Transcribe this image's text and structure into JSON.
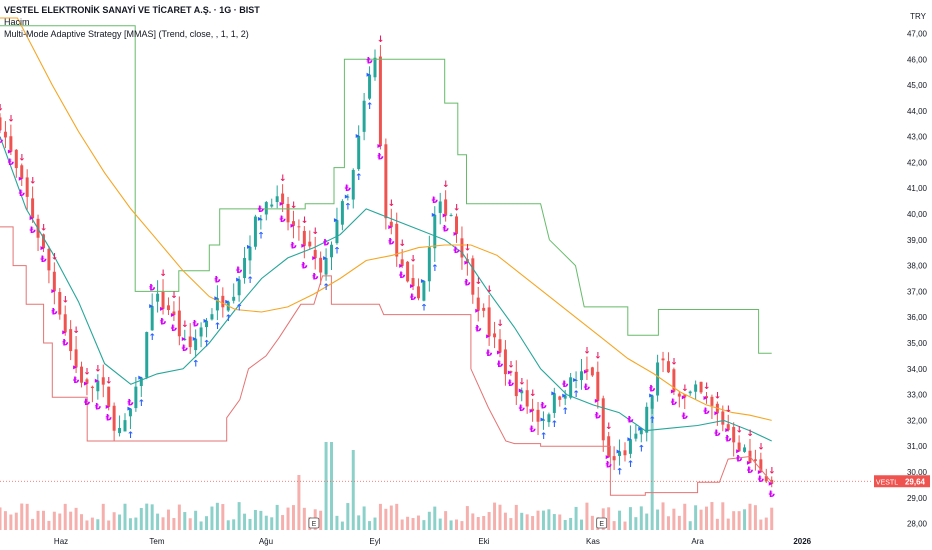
{
  "legend": {
    "title": "VESTEL ELEKTRONİK SANAYİ VE TİCARET A.Ş. · 1G · BIST",
    "volume": "Hacim",
    "indicator": "Multi-Mode Adaptive Strategy [MMAS] (Trend, close, , 1, 1, 2)"
  },
  "currency": "TRY",
  "price_tag": {
    "symbol": "VESTL",
    "value": "29,64"
  },
  "colors": {
    "bull": "#26a69a",
    "bear": "#ef5350",
    "upper_band": "#66bb6a",
    "lower_band": "#e57373",
    "fast_ma": "#26a69a",
    "slow_ma": "#f5a623",
    "sell_arrow": "#e91e63",
    "buy_arrow": "#2962ff",
    "lira_mark": "#d500f9",
    "tag_bg": "#ef5350"
  },
  "chart_data": {
    "type": "candlestick",
    "symbol": "VESTL",
    "timeframe": "1G",
    "y_ticks": [
      "47,00",
      "46,00",
      "45,00",
      "44,00",
      "43,00",
      "42,00",
      "41,00",
      "40,00",
      "39,00",
      "38,00",
      "37,00",
      "36,00",
      "35,00",
      "34,00",
      "33,00",
      "32,00",
      "31,00",
      "30,00",
      "29,00",
      "28,00"
    ],
    "ylim": [
      27.75,
      47.6
    ],
    "x_ticks": [
      {
        "label": "Haz",
        "t": 0.07
      },
      {
        "label": "Tem",
        "t": 0.18
      },
      {
        "label": "Ağu",
        "t": 0.305
      },
      {
        "label": "Eyl",
        "t": 0.43
      },
      {
        "label": "Eki",
        "t": 0.555
      },
      {
        "label": "Kas",
        "t": 0.68
      },
      {
        "label": "Ara",
        "t": 0.8
      },
      {
        "label": "2026",
        "t": 0.92
      }
    ],
    "price_anchors": [
      [
        0,
        43.6
      ],
      [
        0.02,
        41.5
      ],
      [
        0.035,
        40.2
      ],
      [
        0.05,
        38.5
      ],
      [
        0.065,
        36.8
      ],
      [
        0.085,
        34.2
      ],
      [
        0.1,
        33.2
      ],
      [
        0.115,
        33.5
      ],
      [
        0.125,
        32.3
      ],
      [
        0.14,
        31.4
      ],
      [
        0.16,
        33.4
      ],
      [
        0.175,
        36.8
      ],
      [
        0.195,
        36.3
      ],
      [
        0.215,
        34.6
      ],
      [
        0.24,
        36.2
      ],
      [
        0.27,
        37.2
      ],
      [
        0.29,
        39.4
      ],
      [
        0.31,
        40.8
      ],
      [
        0.335,
        39.5
      ],
      [
        0.355,
        38.6
      ],
      [
        0.37,
        37.4
      ],
      [
        0.385,
        39.8
      ],
      [
        0.4,
        40.6
      ],
      [
        0.41,
        42.5
      ],
      [
        0.42,
        44.8
      ],
      [
        0.43,
        46.0
      ],
      [
        0.44,
        40.5
      ],
      [
        0.455,
        38.4
      ],
      [
        0.47,
        36.8
      ],
      [
        0.485,
        37.2
      ],
      [
        0.5,
        40.1
      ],
      [
        0.515,
        40.3
      ],
      [
        0.53,
        38.6
      ],
      [
        0.545,
        36.9
      ],
      [
        0.56,
        35.5
      ],
      [
        0.58,
        34.0
      ],
      [
        0.6,
        32.8
      ],
      [
        0.62,
        32.0
      ],
      [
        0.64,
        33.0
      ],
      [
        0.66,
        33.6
      ],
      [
        0.68,
        33.9
      ],
      [
        0.69,
        31.4
      ],
      [
        0.7,
        30.3
      ],
      [
        0.715,
        30.8
      ],
      [
        0.73,
        31.2
      ],
      [
        0.745,
        32.6
      ],
      [
        0.755,
        34.3
      ],
      [
        0.77,
        33.6
      ],
      [
        0.785,
        32.8
      ],
      [
        0.8,
        33.1
      ],
      [
        0.815,
        32.5
      ],
      [
        0.83,
        31.9
      ],
      [
        0.845,
        31.2
      ],
      [
        0.86,
        30.4
      ],
      [
        0.875,
        30.1
      ],
      [
        0.885,
        29.64
      ]
    ],
    "upper_band": [
      [
        0,
        47.3
      ],
      [
        0.155,
        47.3
      ],
      [
        0.155,
        37.0
      ],
      [
        0.205,
        37.0
      ],
      [
        0.205,
        37.8
      ],
      [
        0.24,
        37.8
      ],
      [
        0.24,
        38.8
      ],
      [
        0.252,
        38.8
      ],
      [
        0.252,
        40.2
      ],
      [
        0.35,
        40.2
      ],
      [
        0.35,
        40.4
      ],
      [
        0.383,
        40.4
      ],
      [
        0.383,
        41.8
      ],
      [
        0.395,
        41.8
      ],
      [
        0.395,
        46.0
      ],
      [
        0.51,
        46.0
      ],
      [
        0.51,
        44.3
      ],
      [
        0.525,
        44.3
      ],
      [
        0.525,
        42.3
      ],
      [
        0.535,
        42.3
      ],
      [
        0.535,
        40.4
      ],
      [
        0.62,
        40.4
      ],
      [
        0.63,
        39.0
      ],
      [
        0.66,
        38.0
      ],
      [
        0.67,
        36.4
      ],
      [
        0.72,
        36.4
      ],
      [
        0.72,
        35.3
      ],
      [
        0.755,
        35.3
      ],
      [
        0.755,
        36.3
      ],
      [
        0.87,
        36.3
      ],
      [
        0.87,
        34.6
      ],
      [
        0.885,
        34.6
      ]
    ],
    "lower_band": [
      [
        0,
        39.5
      ],
      [
        0.015,
        39.5
      ],
      [
        0.015,
        38.0
      ],
      [
        0.03,
        38.0
      ],
      [
        0.03,
        36.5
      ],
      [
        0.05,
        36.5
      ],
      [
        0.05,
        35.0
      ],
      [
        0.06,
        35.0
      ],
      [
        0.06,
        32.9
      ],
      [
        0.1,
        32.9
      ],
      [
        0.1,
        31.2
      ],
      [
        0.26,
        31.2
      ],
      [
        0.26,
        32.1
      ],
      [
        0.275,
        32.8
      ],
      [
        0.285,
        34.0
      ],
      [
        0.305,
        34.5
      ],
      [
        0.32,
        35.2
      ],
      [
        0.345,
        36.5
      ],
      [
        0.36,
        36.5
      ],
      [
        0.37,
        37.6
      ],
      [
        0.38,
        37.6
      ],
      [
        0.38,
        36.5
      ],
      [
        0.435,
        36.5
      ],
      [
        0.44,
        36.1
      ],
      [
        0.54,
        36.1
      ],
      [
        0.54,
        34.0
      ],
      [
        0.56,
        32.5
      ],
      [
        0.58,
        31.2
      ],
      [
        0.59,
        31.1
      ],
      [
        0.62,
        31.1
      ],
      [
        0.62,
        31.0
      ],
      [
        0.7,
        31.0
      ],
      [
        0.7,
        29.1
      ],
      [
        0.74,
        29.1
      ],
      [
        0.74,
        29.2
      ],
      [
        0.8,
        29.2
      ],
      [
        0.8,
        29.6
      ],
      [
        0.825,
        29.6
      ],
      [
        0.835,
        30.5
      ],
      [
        0.86,
        30.6
      ],
      [
        0.885,
        29.6
      ]
    ],
    "fast_ma": [
      [
        0,
        43.0
      ],
      [
        0.03,
        40.2
      ],
      [
        0.06,
        38.5
      ],
      [
        0.09,
        36.6
      ],
      [
        0.12,
        34.2
      ],
      [
        0.15,
        33.4
      ],
      [
        0.18,
        33.8
      ],
      [
        0.21,
        34.0
      ],
      [
        0.24,
        35.0
      ],
      [
        0.27,
        36.3
      ],
      [
        0.3,
        37.5
      ],
      [
        0.33,
        38.3
      ],
      [
        0.36,
        38.7
      ],
      [
        0.39,
        39.2
      ],
      [
        0.42,
        40.2
      ],
      [
        0.45,
        39.8
      ],
      [
        0.48,
        39.4
      ],
      [
        0.51,
        39.0
      ],
      [
        0.53,
        38.5
      ],
      [
        0.56,
        37.0
      ],
      [
        0.59,
        35.6
      ],
      [
        0.62,
        34.0
      ],
      [
        0.65,
        33.0
      ],
      [
        0.68,
        32.6
      ],
      [
        0.71,
        32.3
      ],
      [
        0.74,
        31.6
      ],
      [
        0.77,
        31.7
      ],
      [
        0.8,
        31.8
      ],
      [
        0.83,
        32.0
      ],
      [
        0.86,
        31.6
      ],
      [
        0.885,
        31.2
      ]
    ],
    "slow_ma": [
      [
        0,
        47.6
      ],
      [
        0.02,
        47.6
      ],
      [
        0.06,
        45.0
      ],
      [
        0.09,
        43.2
      ],
      [
        0.12,
        41.6
      ],
      [
        0.15,
        40.2
      ],
      [
        0.18,
        39.0
      ],
      [
        0.21,
        37.8
      ],
      [
        0.24,
        36.8
      ],
      [
        0.27,
        36.3
      ],
      [
        0.3,
        36.2
      ],
      [
        0.33,
        36.4
      ],
      [
        0.36,
        36.9
      ],
      [
        0.39,
        37.5
      ],
      [
        0.42,
        38.2
      ],
      [
        0.45,
        38.4
      ],
      [
        0.48,
        38.7
      ],
      [
        0.51,
        38.8
      ],
      [
        0.54,
        38.8
      ],
      [
        0.57,
        38.4
      ],
      [
        0.6,
        37.6
      ],
      [
        0.63,
        36.8
      ],
      [
        0.66,
        36.0
      ],
      [
        0.69,
        35.2
      ],
      [
        0.72,
        34.4
      ],
      [
        0.75,
        33.8
      ],
      [
        0.78,
        33.1
      ],
      [
        0.81,
        32.6
      ],
      [
        0.84,
        32.3
      ],
      [
        0.86,
        32.2
      ],
      [
        0.885,
        32.0
      ]
    ],
    "earnings_markers": [
      {
        "label": "E",
        "t": 0.36
      },
      {
        "label": "E",
        "t": 0.69
      }
    ]
  }
}
